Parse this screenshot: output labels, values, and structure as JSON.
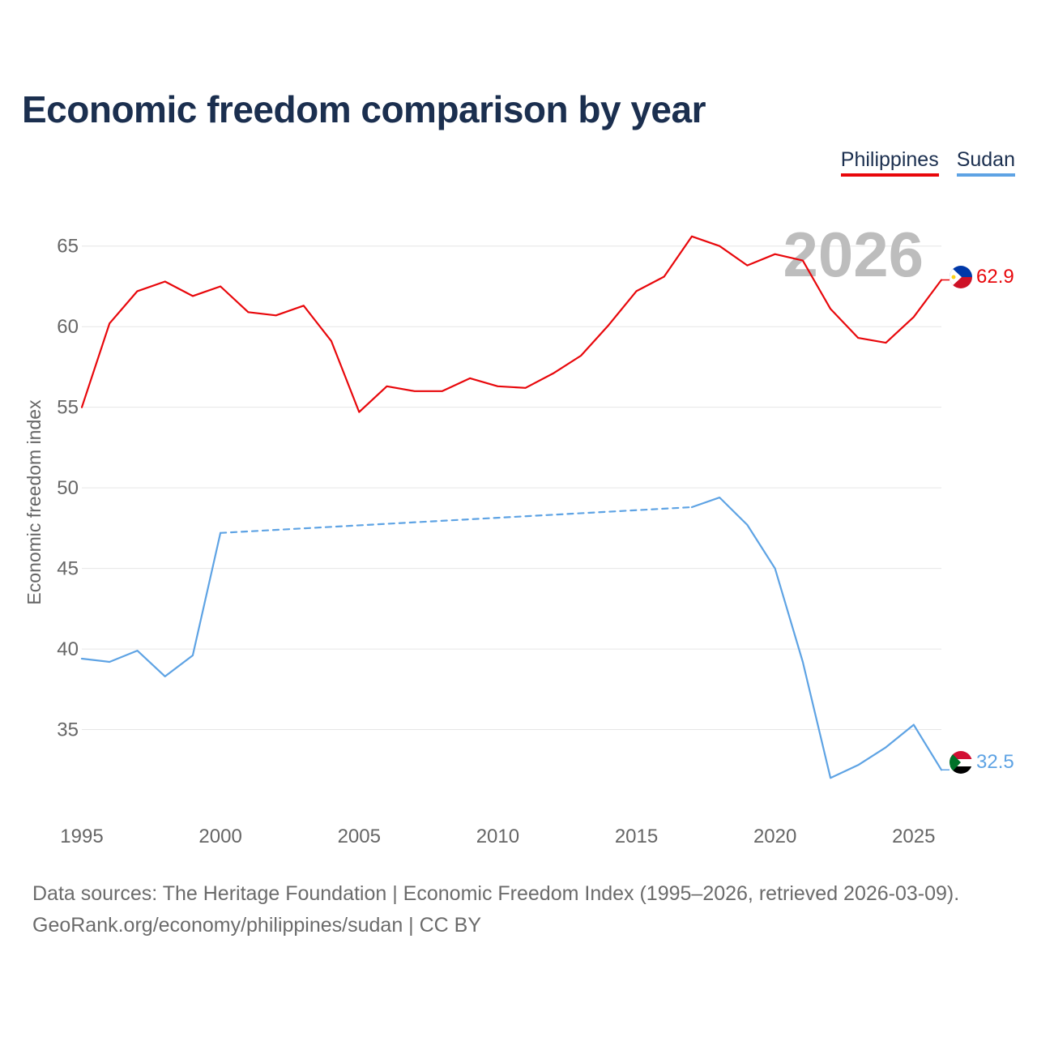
{
  "header": {
    "title": "Economic freedom comparison by year"
  },
  "legend": {
    "items": [
      {
        "label": "Philippines",
        "color": "#e8070b"
      },
      {
        "label": "Sudan",
        "color": "#5ea3e4"
      }
    ]
  },
  "footer": {
    "line1": "Data sources: The Heritage Foundation | Economic Freedom Index (1995–2026, retrieved 2026-03-09).",
    "line2": "GeoRank.org/economy/philippines/sudan | CC BY"
  },
  "chart_data": {
    "type": "line",
    "title": "Economic freedom comparison by year",
    "xlabel": "",
    "ylabel": "Economic freedom index",
    "xlim": [
      1995,
      2026
    ],
    "ylim": [
      30,
      67.5
    ],
    "xticks": [
      1995,
      2000,
      2005,
      2010,
      2015,
      2020,
      2025
    ],
    "yticks": [
      35,
      40,
      45,
      50,
      55,
      60,
      65
    ],
    "current_year": "2026",
    "series": [
      {
        "name": "Philippines",
        "color": "#e8070b",
        "end_label": "62.9",
        "flag": "philippines-flag",
        "points": [
          [
            1995,
            55.0
          ],
          [
            1996,
            60.2
          ],
          [
            1997,
            62.2
          ],
          [
            1998,
            62.8
          ],
          [
            1999,
            61.9
          ],
          [
            2000,
            62.5
          ],
          [
            2001,
            60.9
          ],
          [
            2002,
            60.7
          ],
          [
            2003,
            61.3
          ],
          [
            2004,
            59.1
          ],
          [
            2005,
            54.7
          ],
          [
            2006,
            56.3
          ],
          [
            2007,
            56.0
          ],
          [
            2008,
            56.0
          ],
          [
            2009,
            56.8
          ],
          [
            2010,
            56.3
          ],
          [
            2011,
            56.2
          ],
          [
            2012,
            57.1
          ],
          [
            2013,
            58.2
          ],
          [
            2014,
            60.1
          ],
          [
            2015,
            62.2
          ],
          [
            2016,
            63.1
          ],
          [
            2017,
            65.6
          ],
          [
            2018,
            65.0
          ],
          [
            2019,
            63.8
          ],
          [
            2020,
            64.5
          ],
          [
            2021,
            64.1
          ],
          [
            2022,
            61.1
          ],
          [
            2023,
            59.3
          ],
          [
            2024,
            59.0
          ],
          [
            2025,
            60.6
          ],
          [
            2026,
            62.9
          ]
        ]
      },
      {
        "name": "Sudan",
        "color": "#5ea3e4",
        "end_label": "32.5",
        "flag": "sudan-flag",
        "gap": [
          2000,
          2017
        ],
        "points": [
          [
            1995,
            39.4
          ],
          [
            1996,
            39.2
          ],
          [
            1997,
            39.9
          ],
          [
            1998,
            38.3
          ],
          [
            1999,
            39.6
          ],
          [
            2000,
            47.2
          ],
          [
            2017,
            48.8
          ],
          [
            2018,
            49.4
          ],
          [
            2019,
            47.7
          ],
          [
            2020,
            45.0
          ],
          [
            2021,
            39.2
          ],
          [
            2022,
            32.0
          ],
          [
            2023,
            32.8
          ],
          [
            2024,
            33.9
          ],
          [
            2025,
            35.3
          ],
          [
            2026,
            32.5
          ]
        ]
      }
    ]
  }
}
